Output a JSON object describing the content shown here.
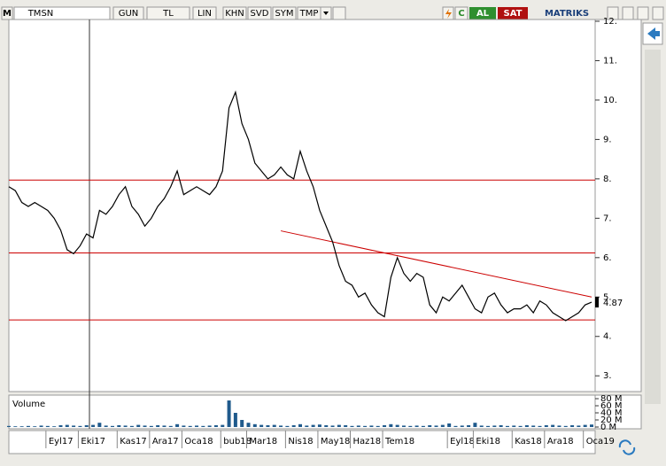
{
  "toolbar": {
    "logo": "M",
    "symbol": "TMSN",
    "buttons": [
      "GUN",
      "TL",
      "LIN",
      "KHN",
      "SVD",
      "SYM",
      "TMP"
    ],
    "refresh": "C",
    "buy": "AL",
    "sell": "SAT",
    "brand": "MATRIKS"
  },
  "chart_data": {
    "type": "line",
    "series": [
      {
        "name": "TMSN",
        "color": "#000000",
        "values": [
          7.8,
          7.7,
          7.4,
          7.3,
          7.4,
          7.3,
          7.2,
          7.0,
          6.7,
          6.2,
          6.1,
          6.3,
          6.6,
          6.5,
          7.2,
          7.1,
          7.3,
          7.6,
          7.8,
          7.3,
          7.1,
          6.8,
          7.0,
          7.3,
          7.5,
          7.8,
          8.2,
          7.6,
          7.7,
          7.8,
          7.7,
          7.6,
          7.8,
          8.2,
          9.8,
          10.2,
          9.4,
          9.0,
          8.4,
          8.2,
          8.0,
          8.1,
          8.3,
          8.1,
          8.0,
          8.7,
          8.2,
          7.8,
          7.2,
          6.8,
          6.4,
          5.8,
          5.4,
          5.3,
          5.0,
          5.1,
          4.8,
          4.6,
          4.5,
          5.5,
          6.0,
          5.6,
          5.4,
          5.6,
          5.5,
          4.8,
          4.6,
          5.0,
          4.9,
          5.1,
          5.3,
          5.0,
          4.7,
          4.6,
          5.0,
          5.1,
          4.8,
          4.6,
          4.7,
          4.7,
          4.8,
          4.6,
          4.9,
          4.8,
          4.6,
          4.5,
          4.4,
          4.5,
          4.6,
          4.8,
          4.87
        ]
      }
    ],
    "last_value": 4.87,
    "last_label": "4.87",
    "levels": [
      7.97,
      6.12,
      4.42
    ],
    "level_color": "#cc0000",
    "trendline": {
      "x": [
        42,
        90
      ],
      "values": [
        6.68,
        5.0
      ]
    },
    "xlim": [
      0,
      90
    ],
    "xticks": [
      {
        "value": 6,
        "label": "Eyl17"
      },
      {
        "value": 11,
        "label": "Eki17"
      },
      {
        "value": 17,
        "label": "Kas17"
      },
      {
        "value": 22,
        "label": "Ara17"
      },
      {
        "value": 27,
        "label": "Oca18"
      },
      {
        "value": 33,
        "label": "bub18"
      },
      {
        "value": 37,
        "label": "Mar18"
      },
      {
        "value": 43,
        "label": "Nis18"
      },
      {
        "value": 48,
        "label": "May18"
      },
      {
        "value": 53,
        "label": "Haz18"
      },
      {
        "value": 58,
        "label": "Tem18"
      },
      {
        "value": 68,
        "label": "Eyl18"
      },
      {
        "value": 72,
        "label": "Eki18"
      },
      {
        "value": 78,
        "label": "Kas18"
      },
      {
        "value": 83,
        "label": "Ara18"
      },
      {
        "value": 89,
        "label": "Oca19"
      }
    ],
    "ylim": [
      2.6,
      12
    ],
    "yticks": [
      {
        "value": 3,
        "label": "3."
      },
      {
        "value": 4,
        "label": "4."
      },
      {
        "value": 5,
        "label": "5."
      },
      {
        "value": 6,
        "label": "6."
      },
      {
        "value": 7,
        "label": "7."
      },
      {
        "value": 8,
        "label": "8."
      },
      {
        "value": 9,
        "label": "9."
      },
      {
        "value": 10,
        "label": "10."
      },
      {
        "value": 11,
        "label": "11."
      },
      {
        "value": 12,
        "label": "12."
      }
    ],
    "volume": {
      "name": "Volume",
      "color": "#1f5a8c",
      "values": [
        3,
        2,
        2,
        3,
        2,
        4,
        3,
        2,
        5,
        6,
        4,
        3,
        5,
        6,
        12,
        4,
        3,
        5,
        4,
        3,
        6,
        4,
        3,
        5,
        4,
        3,
        8,
        4,
        3,
        4,
        3,
        4,
        5,
        6,
        75,
        40,
        20,
        12,
        8,
        6,
        5,
        6,
        4,
        3,
        5,
        8,
        4,
        6,
        7,
        5,
        4,
        6,
        5,
        3,
        4,
        3,
        4,
        3,
        5,
        8,
        6,
        4,
        3,
        4,
        3,
        5,
        4,
        6,
        10,
        3,
        4,
        5,
        12,
        4,
        3,
        4,
        5,
        3,
        4,
        3,
        5,
        4,
        3,
        5,
        6,
        4,
        3,
        5,
        4,
        6,
        7
      ],
      "ylim": [
        0,
        80
      ],
      "yticks": [
        {
          "value": 0,
          "label": "0 M"
        },
        {
          "value": 20,
          "label": "20 M"
        },
        {
          "value": 40,
          "label": "40 M"
        },
        {
          "value": 60,
          "label": "60 M"
        },
        {
          "value": 80,
          "label": "80 M"
        }
      ]
    }
  }
}
